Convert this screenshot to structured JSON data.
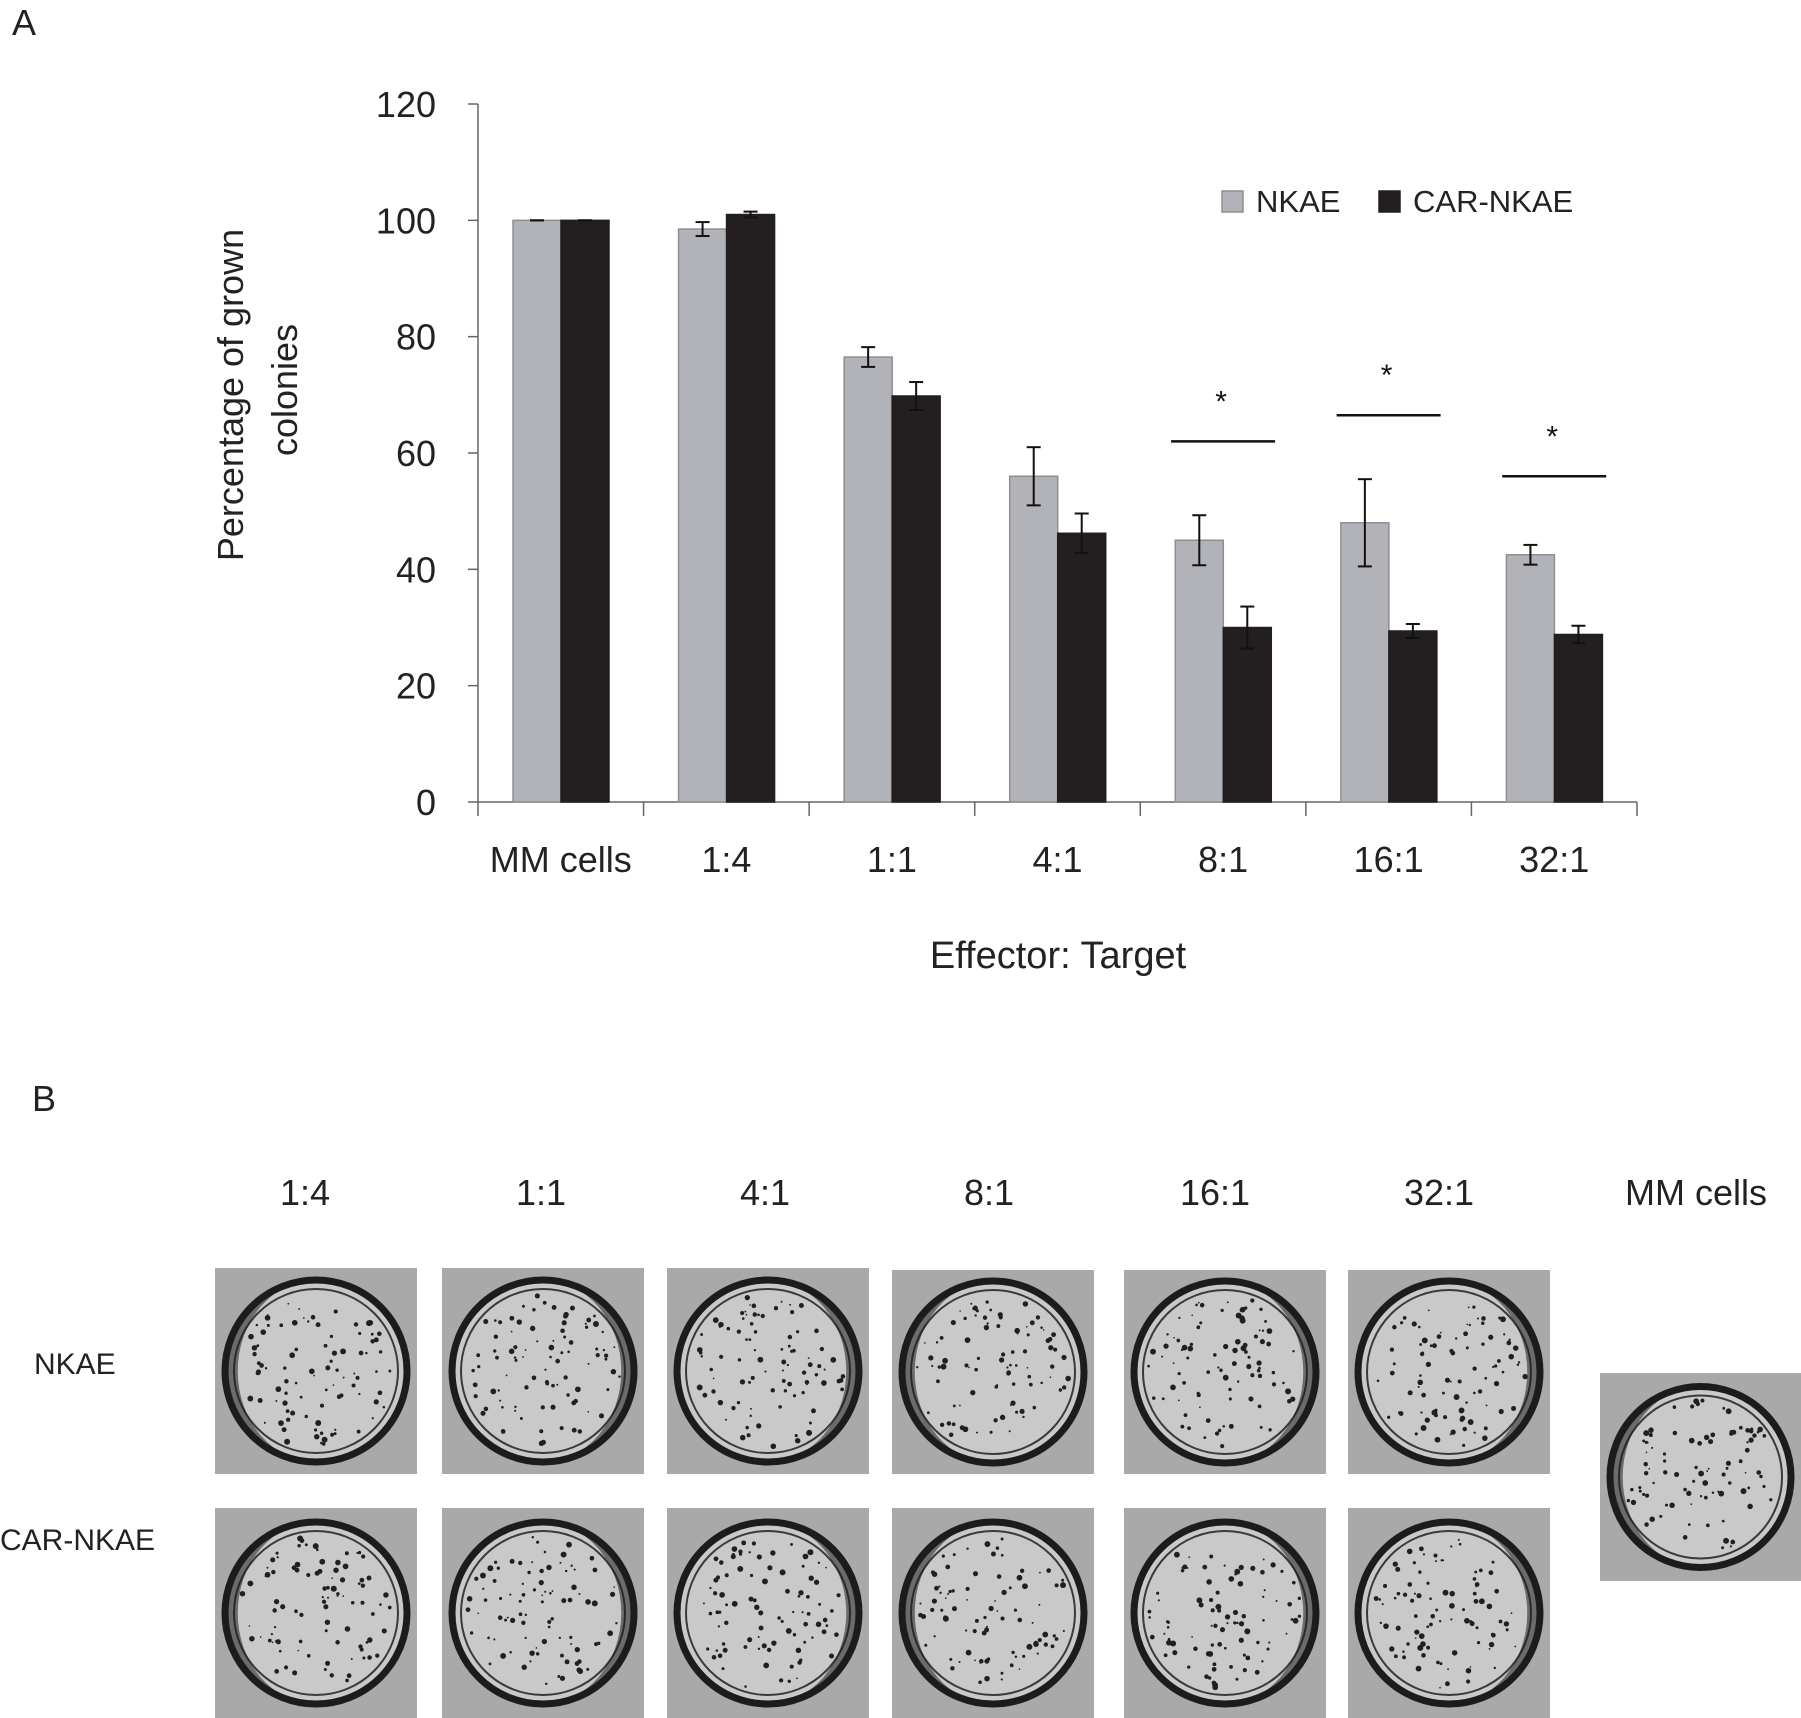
{
  "panel_a_label": "A",
  "panel_b_label": "B",
  "chart_data": {
    "type": "bar",
    "xlabel": "Effector: Target",
    "ylabel_lines": [
      "Percentage of grown",
      "colonies"
    ],
    "categories": [
      "MM cells",
      "1:4",
      "1:1",
      "4:1",
      "8:1",
      "16:1",
      "32:1"
    ],
    "yticks": [
      "0",
      "20",
      "40",
      "60",
      "80",
      "100",
      "120"
    ],
    "ylim": [
      0,
      120
    ],
    "legend_position": "top-right",
    "series": [
      {
        "name": "NKAE",
        "color": "#b2b3b8",
        "values": [
          100,
          98.5,
          76.5,
          56,
          45,
          48,
          42.5
        ],
        "errors": [
          0,
          1.2,
          1.7,
          5,
          4.3,
          7.5,
          1.7
        ]
      },
      {
        "name": "CAR-NKAE",
        "color": "#231f20",
        "values": [
          100,
          101,
          69.8,
          46.2,
          30,
          29.4,
          28.8
        ],
        "errors": [
          0,
          0.5,
          2.4,
          3.4,
          3.6,
          1.2,
          1.5
        ]
      }
    ],
    "significance": [
      {
        "category": "8:1",
        "label": "*",
        "level": 62
      },
      {
        "category": "16:1",
        "label": "*",
        "level": 66.5
      },
      {
        "category": "32:1",
        "label": "*",
        "level": 56
      }
    ]
  },
  "plates": {
    "column_labels": [
      "1:4",
      "1:1",
      "4:1",
      "8:1",
      "16:1",
      "32:1",
      "MM cells"
    ],
    "row_labels": [
      "NKAE",
      "CAR-NKAE"
    ]
  }
}
